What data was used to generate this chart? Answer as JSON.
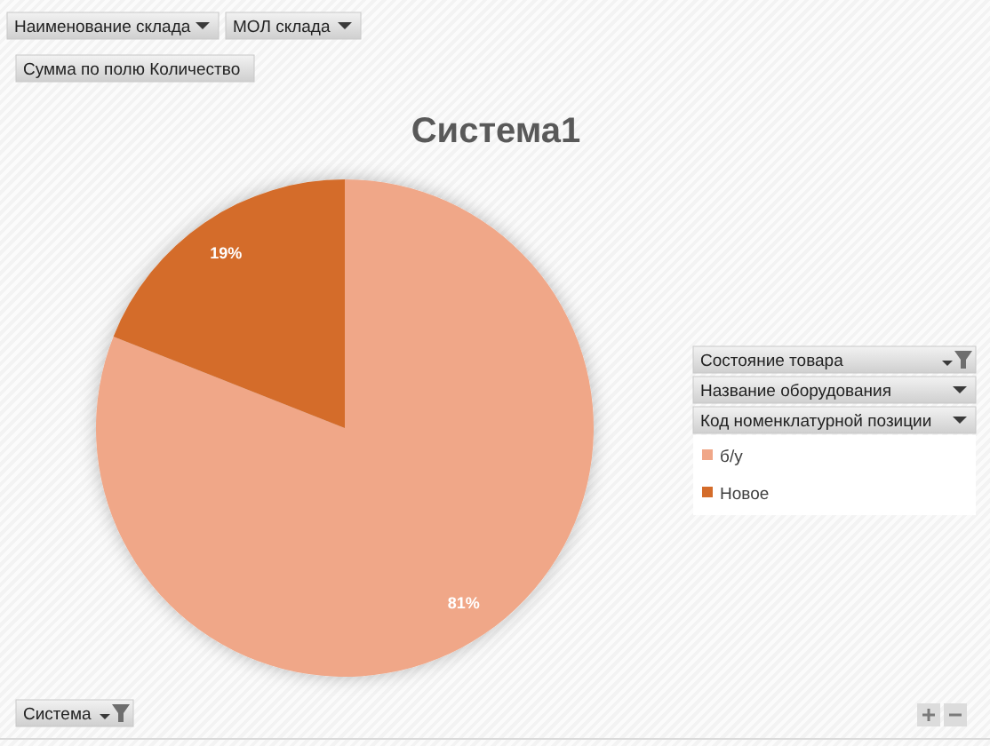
{
  "chart_data": {
    "type": "pie",
    "title": "Система1",
    "categories": [
      "б/у",
      "Новое"
    ],
    "values": [
      81,
      19
    ],
    "colors": [
      "#f0a788",
      "#d46c2a"
    ],
    "value_labels": [
      "81%",
      "19%"
    ],
    "legend": "right",
    "annotations": [
      "Наименование склада",
      "МОЛ склада",
      "Сумма по полю Количество",
      "Состояние товара",
      "Название оборудования",
      "Код номенклатурной позиции",
      "Система"
    ]
  }
}
